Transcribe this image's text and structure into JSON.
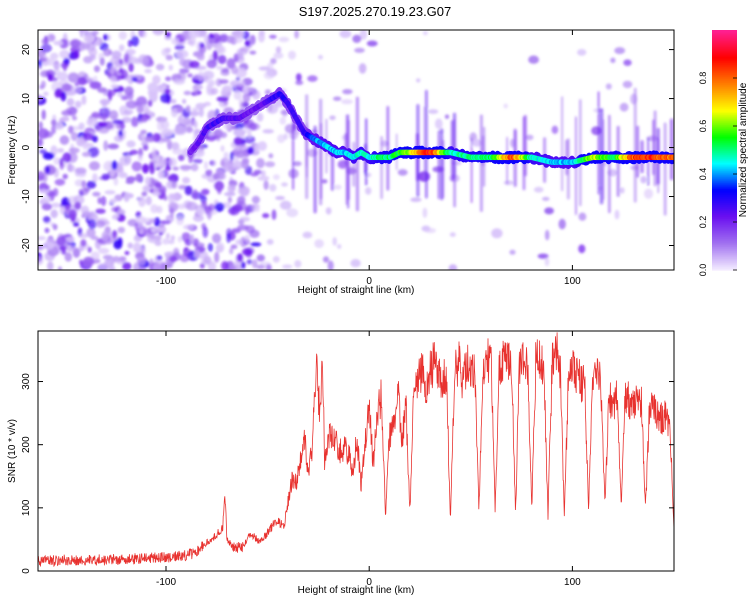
{
  "title": "S197.2025.270.19.23.G07",
  "chart_data": [
    {
      "type": "heatmap",
      "title": "S197.2025.270.19.23.G07",
      "xlabel": "Height of straight line (km)",
      "ylabel": "Frequency (Hz)",
      "xlim": [
        -163,
        150
      ],
      "ylim": [
        -25,
        24
      ],
      "xticks": [
        -100,
        0,
        100
      ],
      "yticks": [
        -20,
        -10,
        0,
        10,
        20
      ],
      "xtick_labels": [
        "-100",
        "0",
        "100"
      ],
      "ytick_labels": [
        "-20",
        "-10",
        "0",
        "10",
        "20"
      ],
      "colorbar": {
        "label": "Normalized spectral amplitude",
        "range": [
          0,
          1
        ],
        "ticks": [
          0.0,
          0.2,
          0.4,
          0.6,
          0.8
        ],
        "tick_labels": [
          "0.0",
          "0.2",
          "0.4",
          "0.6",
          "0.8"
        ],
        "colors": [
          "#f2eaff",
          "#a070f0",
          "#6a0ff0",
          "#0000ff",
          "#00ffff",
          "#00ff00",
          "#ffff00",
          "#ff7f00",
          "#ff0000",
          "#ff1f8f"
        ]
      },
      "ridge": {
        "x": [
          -88,
          -84,
          -80,
          -76,
          -72,
          -68,
          -64,
          -60,
          -56,
          -52,
          -48,
          -44,
          -40,
          -36,
          -32,
          -28,
          -24,
          -20,
          -16,
          -12,
          -8,
          -4,
          0,
          5,
          10,
          15,
          20,
          30,
          40,
          50,
          60,
          70,
          80,
          90,
          100,
          110,
          120,
          130,
          140,
          150
        ],
        "frequency": [
          -1,
          1,
          4,
          5,
          6,
          6,
          6,
          7,
          8,
          9,
          10,
          11,
          9,
          6,
          3,
          2,
          1,
          0,
          -1,
          -1,
          -2,
          -1,
          -2,
          -2,
          -2,
          -1,
          -1,
          -1,
          -1,
          -2,
          -2,
          -2,
          -2,
          -3,
          -3,
          -2,
          -2,
          -2,
          -2,
          -2
        ],
        "amplitude": [
          0.22,
          0.25,
          0.28,
          0.3,
          0.28,
          0.27,
          0.26,
          0.24,
          0.23,
          0.25,
          0.3,
          0.32,
          0.3,
          0.28,
          0.3,
          0.4,
          0.44,
          0.45,
          0.46,
          0.45,
          0.48,
          0.5,
          0.48,
          0.55,
          0.55,
          0.6,
          0.7,
          0.95,
          0.5,
          0.55,
          0.55,
          0.9,
          0.5,
          0.45,
          0.45,
          0.7,
          0.55,
          0.9,
          0.9,
          0.85
        ]
      }
    },
    {
      "type": "line",
      "xlabel": "Height of straight line (km)",
      "ylabel": "SNR (10 * v/v)",
      "xlim": [
        -163,
        150
      ],
      "ylim": [
        0,
        380
      ],
      "xticks": [
        -100,
        0,
        100
      ],
      "yticks": [
        0,
        100,
        200,
        300
      ],
      "xtick_labels": [
        "-100",
        "0",
        "100"
      ],
      "ytick_labels": [
        "0",
        "100",
        "200",
        "300"
      ],
      "color": "#e8322f",
      "series": [
        {
          "name": "SNR",
          "x": [
            -163,
            -150,
            -140,
            -130,
            -120,
            -110,
            -100,
            -90,
            -85,
            -80,
            -76,
            -72,
            -71,
            -70,
            -66,
            -62,
            -58,
            -54,
            -50,
            -46,
            -42,
            -40,
            -38,
            -36,
            -34,
            -32,
            -30,
            -28,
            -26,
            -24,
            -23,
            -22,
            -20,
            -18,
            -16,
            -14,
            -12,
            -10,
            -8,
            -6,
            -4,
            -2,
            0,
            2,
            4,
            6,
            8,
            10,
            12,
            14,
            16,
            18,
            20,
            22,
            24,
            26,
            28,
            30,
            32,
            34,
            36,
            38,
            40,
            42,
            44,
            46,
            48,
            50,
            52,
            54,
            56,
            58,
            60,
            62,
            64,
            66,
            68,
            70,
            72,
            74,
            76,
            78,
            80,
            82,
            84,
            86,
            88,
            90,
            92,
            94,
            96,
            98,
            100,
            102,
            104,
            106,
            108,
            110,
            112,
            114,
            116,
            118,
            120,
            122,
            124,
            126,
            128,
            130,
            132,
            134,
            136,
            138,
            140,
            142,
            144,
            146,
            148,
            150
          ],
          "y": [
            16,
            17,
            18,
            17,
            19,
            20,
            22,
            25,
            30,
            45,
            55,
            70,
            125,
            50,
            35,
            40,
            60,
            45,
            60,
            80,
            70,
            110,
            145,
            140,
            170,
            220,
            150,
            200,
            320,
            240,
            350,
            175,
            210,
            215,
            200,
            190,
            195,
            185,
            150,
            215,
            135,
            200,
            260,
            170,
            245,
            280,
            90,
            215,
            225,
            295,
            195,
            270,
            90,
            295,
            300,
            320,
            285,
            320,
            330,
            320,
            300,
            310,
            80,
            320,
            330,
            300,
            330,
            320,
            310,
            95,
            320,
            335,
            330,
            95,
            320,
            340,
            325,
            330,
            95,
            330,
            330,
            320,
            95,
            340,
            330,
            320,
            85,
            330,
            350,
            320,
            90,
            300,
            320,
            310,
            300,
            295,
            100,
            300,
            310,
            295,
            100,
            280,
            260,
            275,
            100,
            280,
            270,
            265,
            275,
            265,
            100,
            265,
            255,
            250,
            240,
            245,
            235,
            60
          ]
        }
      ]
    }
  ]
}
